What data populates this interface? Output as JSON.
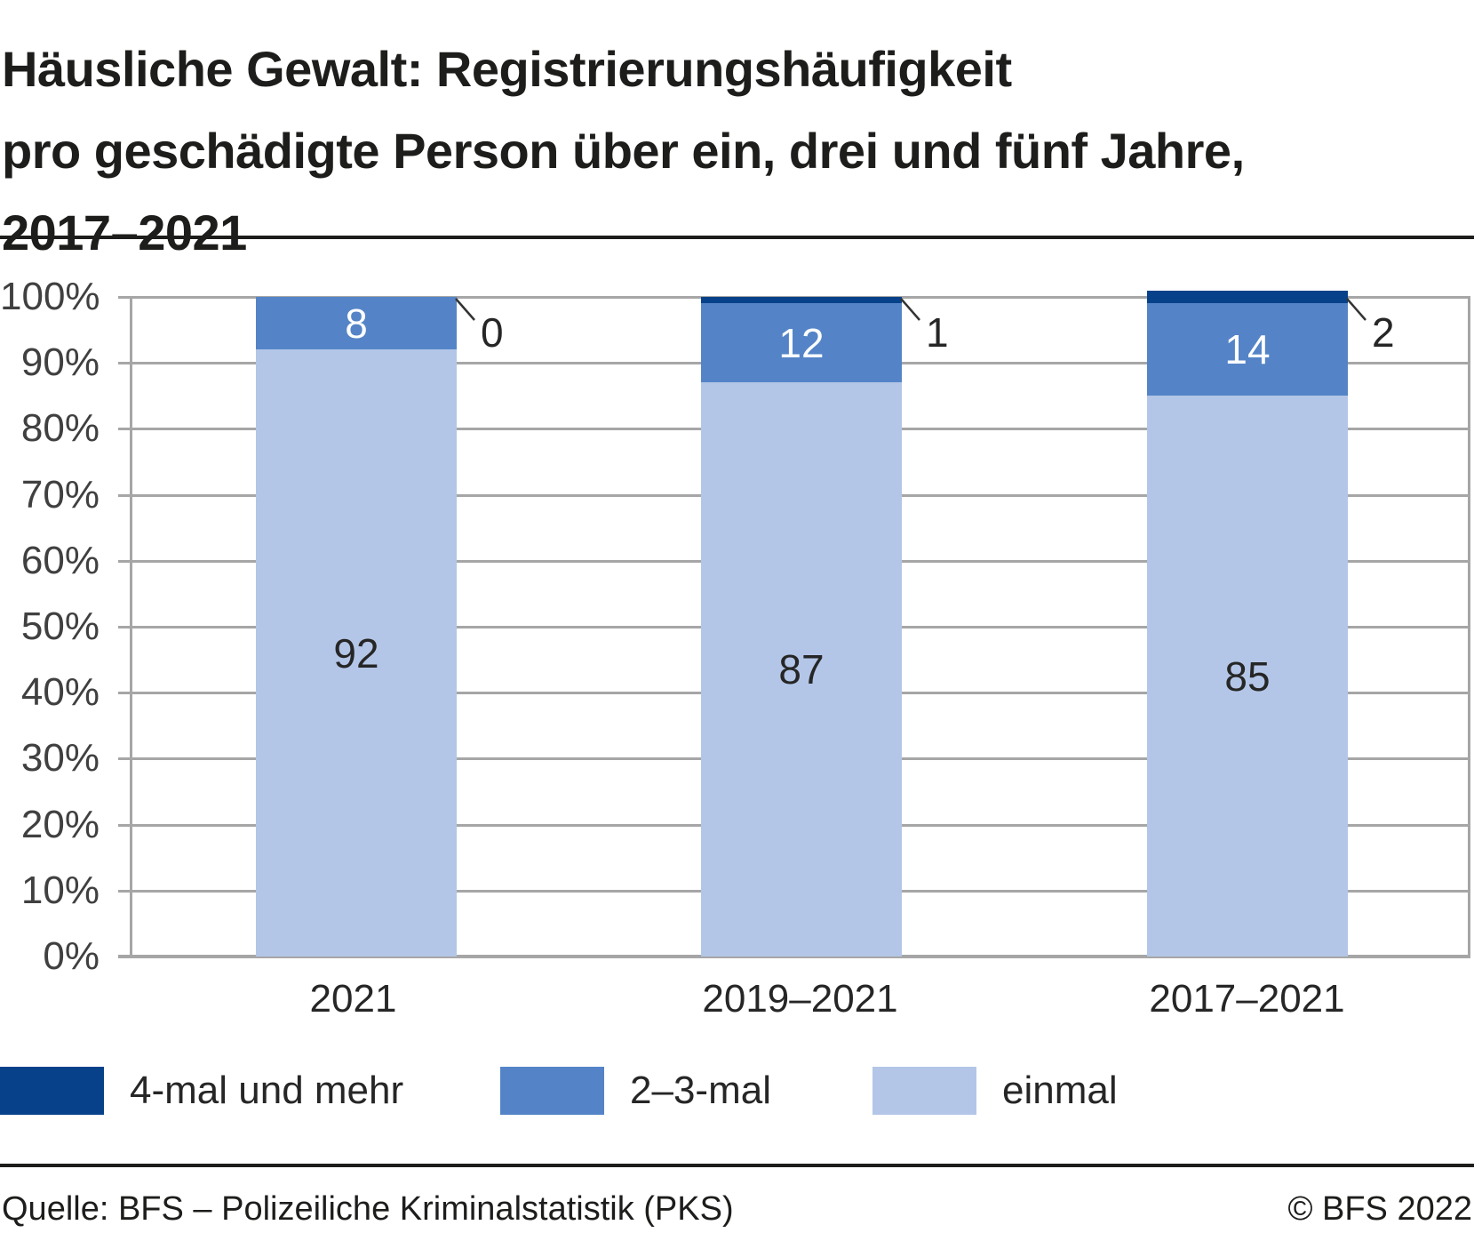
{
  "title": {
    "lines": [
      "Häusliche Gewalt: Registrierungshäufigkeit",
      "pro geschädigte Person über ein, drei und fünf Jahre,",
      "2017–2021"
    ]
  },
  "chart_data": {
    "type": "bar",
    "stacked": true,
    "orientation": "vertical",
    "unit": "%",
    "categories": [
      "2021",
      "2019–2021",
      "2017–2021"
    ],
    "series": [
      {
        "name": "einmal",
        "color": "#b3c6e7",
        "values": [
          92,
          87,
          85
        ],
        "label_placement": "inside",
        "label_color": "#262626"
      },
      {
        "name": "2–3-mal",
        "color": "#5484c7",
        "values": [
          8,
          12,
          14
        ],
        "label_placement": "inside",
        "label_color": "#ffffff"
      },
      {
        "name": "4-mal und mehr",
        "color": "#07418a",
        "values": [
          0,
          1,
          2
        ],
        "label_placement": "callout",
        "label_color": "#262626"
      }
    ],
    "ylim": [
      0,
      100
    ],
    "yticks": [
      "0%",
      "10%",
      "20%",
      "30%",
      "40%",
      "50%",
      "60%",
      "70%",
      "80%",
      "90%",
      "100%"
    ],
    "grid": "horizontal",
    "gridline_color": "#a6a6a6",
    "legend_position": "bottom"
  },
  "legend": {
    "items": [
      {
        "label": "4-mal und mehr",
        "color": "#07418a"
      },
      {
        "label": "2–3-mal",
        "color": "#5484c7"
      },
      {
        "label": "einmal",
        "color": "#b3c6e7"
      }
    ]
  },
  "footer": {
    "source": "Quelle: BFS – Polizeiliche Kriminalstatistik (PKS)",
    "copyright": "© BFS 2022"
  }
}
